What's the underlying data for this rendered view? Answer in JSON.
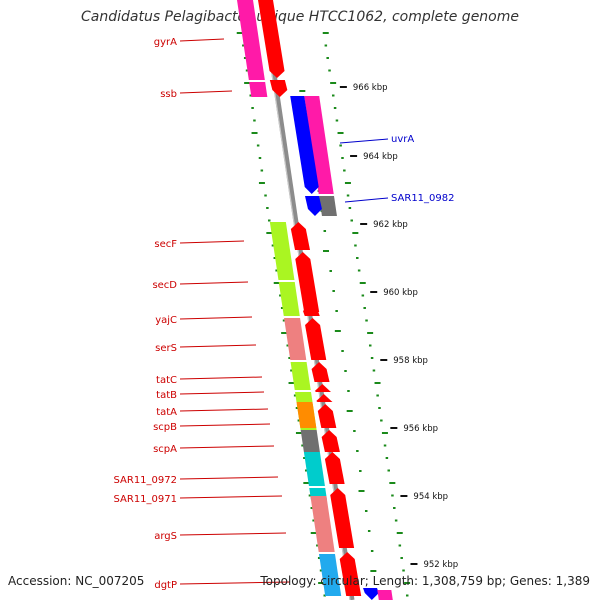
{
  "title": "Candidatus Pelagibacter ubique HTCC1062, complete genome",
  "footer": {
    "accession": "Accession: NC_007205",
    "topology": "Topology: circular; Length: 1,308,759 bp; Genes: 1,389"
  },
  "colors": {
    "label_left": "#cc0000",
    "label_right": "#0000cc",
    "backbone": "#8c8c8c",
    "tick_green": "#1a8a1a",
    "forward_arrow": "#ff0000",
    "reverse_arrow": "#0000ff"
  },
  "genes_left": [
    {
      "name": "gyrA",
      "color": "#ff1aa8"
    },
    {
      "name": "ssb",
      "color": "#ff1aa8"
    },
    {
      "name": "secF",
      "color": "#aaf522"
    },
    {
      "name": "secD",
      "color": "#aaf522"
    },
    {
      "name": "yajC",
      "color": "#ee8080"
    },
    {
      "name": "serS",
      "color": "#ee8080"
    },
    {
      "name": "tatC",
      "color": "#aaf522"
    },
    {
      "name": "tatB",
      "color": "#aaf522"
    },
    {
      "name": "tatA",
      "color": "#aaf522"
    },
    {
      "name": "scpB",
      "color": "#ff8c00"
    },
    {
      "name": "scpA",
      "color": "#707070"
    },
    {
      "name": "SAR11_0972",
      "color": "#00cccc"
    },
    {
      "name": "SAR11_0971",
      "color": "#00cccc"
    },
    {
      "name": "argS",
      "color": "#ee8080"
    },
    {
      "name": "dgtP",
      "color": "#22aaee"
    }
  ],
  "genes_right": [
    {
      "name": "uvrA",
      "color": "#ff1aa8"
    },
    {
      "name": "SAR11_0982",
      "color": "#707070"
    }
  ],
  "kbp_labels": [
    "966 kbp",
    "964 kbp",
    "962 kbp",
    "960 kbp",
    "958 kbp",
    "956 kbp",
    "954 kbp",
    "952 kbp"
  ]
}
